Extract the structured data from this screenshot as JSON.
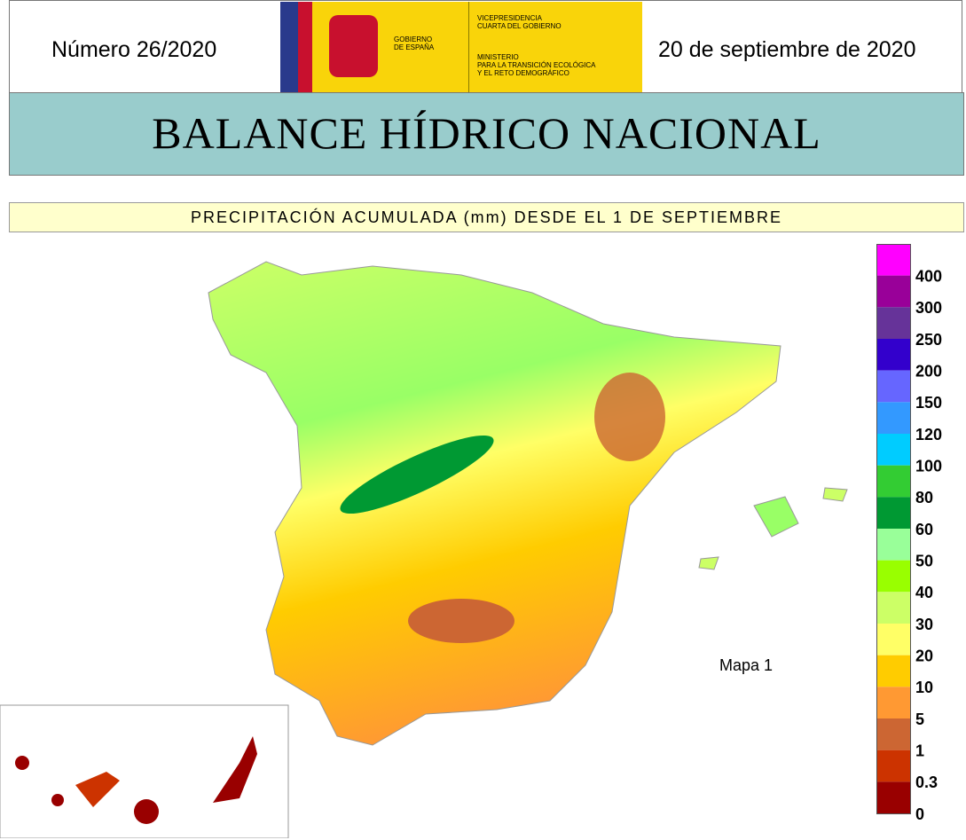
{
  "header": {
    "number": "Número 26/2020",
    "date": "20 de septiembre de 2020",
    "logo": {
      "government": [
        "GOBIERNO",
        "DE ESPAÑA"
      ],
      "vice": [
        "VICEPRESIDENCIA",
        "CUARTA DEL GOBIERNO"
      ],
      "ministry": [
        "MINISTERIO",
        "PARA LA TRANSICIÓN ECOLÓGICA",
        "Y EL RETO DEMOGRÁFICO"
      ]
    }
  },
  "title": "BALANCE HÍDRICO NACIONAL",
  "subtitle": "PRECIPITACIÓN ACUMULADA (mm) DESDE EL 1 DE SEPTIEMBRE",
  "map_label": "Mapa 1",
  "legend": {
    "colors": [
      "#ff00ff",
      "#990099",
      "#663399",
      "#3300cc",
      "#6666ff",
      "#3399ff",
      "#00ccff",
      "#33cc33",
      "#009933",
      "#99ff99",
      "#99ff00",
      "#ccff66",
      "#ffff66",
      "#ffcc00",
      "#ff9933",
      "#cc6633",
      "#cc3300",
      "#990000"
    ],
    "labels": [
      "400",
      "300",
      "250",
      "200",
      "150",
      "120",
      "100",
      "80",
      "60",
      "50",
      "40",
      "30",
      "20",
      "10",
      "5",
      "1",
      "0.3",
      "0"
    ]
  }
}
